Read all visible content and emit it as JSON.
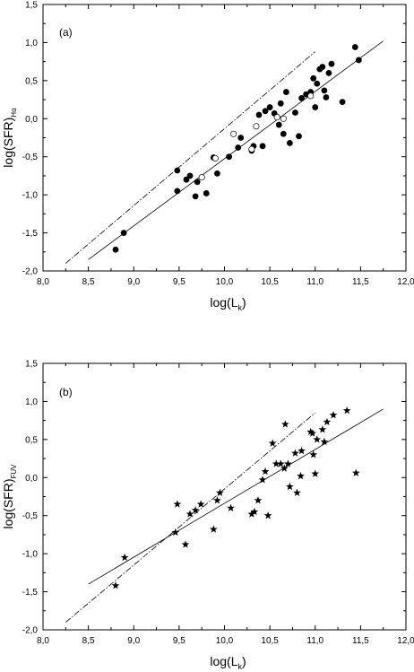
{
  "chart_data": [
    {
      "type": "scatter",
      "panel_label": "(a)",
      "xlabel_main": "log(L",
      "xlabel_sub": "k",
      "xlabel_close": ")",
      "ylabel_main": "log(SFR)",
      "ylabel_sub": "Hα",
      "xlim": [
        8.0,
        12.0
      ],
      "ylim": [
        -2.0,
        1.5
      ],
      "xticks": [
        8.0,
        8.5,
        9.0,
        9.5,
        10.0,
        10.5,
        11.0,
        11.5,
        12.0
      ],
      "yticks": [
        -2.0,
        -1.5,
        -1.0,
        -0.5,
        0.0,
        0.5,
        1.0,
        1.5
      ],
      "xtick_labels": [
        "8,0",
        "8,5",
        "9,0",
        "9,5",
        "10,0",
        "10,5",
        "11,0",
        "11,5",
        "12,0"
      ],
      "ytick_labels": [
        "-2,0",
        "-1,5",
        "-1,0",
        "-0,5",
        "0,0",
        "0,5",
        "1,0",
        "1,5"
      ],
      "series": [
        {
          "marker": "filled-circle",
          "x": [
            8.8,
            8.89,
            9.48,
            9.48,
            9.58,
            9.62,
            9.68,
            9.7,
            9.8,
            9.88,
            9.92,
            10.05,
            10.15,
            10.18,
            10.3,
            10.32,
            10.38,
            10.42,
            10.45,
            10.5,
            10.55,
            10.6,
            10.62,
            10.65,
            10.68,
            10.72,
            10.78,
            10.82,
            10.85,
            10.9,
            10.95,
            10.98,
            11.0,
            11.02,
            11.05,
            11.08,
            11.1,
            11.12,
            11.15,
            11.18,
            11.3,
            11.44,
            11.48
          ],
          "y": [
            -1.72,
            -1.5,
            -0.95,
            -0.68,
            -0.8,
            -0.75,
            -1.02,
            -0.83,
            -0.98,
            -0.51,
            -0.72,
            -0.5,
            -0.38,
            -0.25,
            -0.42,
            -0.36,
            0.05,
            -0.36,
            0.1,
            0.15,
            0.07,
            -0.08,
            0.2,
            -0.2,
            0.35,
            -0.32,
            0.08,
            -0.23,
            0.27,
            0.32,
            0.35,
            0.53,
            0.15,
            0.46,
            0.65,
            0.68,
            0.37,
            0.28,
            0.6,
            0.72,
            0.22,
            0.94,
            0.77
          ]
        },
        {
          "marker": "open-circle",
          "x": [
            9.75,
            9.9,
            10.1,
            10.3,
            10.35,
            10.58,
            10.65,
            10.95
          ],
          "y": [
            -0.77,
            -0.52,
            -0.2,
            -0.4,
            -0.1,
            0.02,
            0.0,
            0.3
          ]
        }
      ],
      "lines": [
        {
          "style": "solid",
          "x": [
            8.5,
            11.75
          ],
          "y": [
            -1.85,
            1.02
          ]
        },
        {
          "style": "dash-dot",
          "x": [
            8.25,
            11.0
          ],
          "y": [
            -1.9,
            0.88
          ]
        }
      ]
    },
    {
      "type": "scatter",
      "panel_label": "(b)",
      "xlabel_main": "log(L",
      "xlabel_sub": "k",
      "xlabel_close": ")",
      "ylabel_main": "log(SFR)",
      "ylabel_sub": "FUV",
      "xlim": [
        8.0,
        12.0
      ],
      "ylim": [
        -2.0,
        1.5
      ],
      "xticks": [
        8.0,
        8.5,
        9.0,
        9.5,
        10.0,
        10.5,
        11.0,
        11.5,
        12.0
      ],
      "yticks": [
        -2.0,
        -1.5,
        -1.0,
        -0.5,
        0.0,
        0.5,
        1.0,
        1.5
      ],
      "xtick_labels": [
        "8,0",
        "8,5",
        "9,0",
        "9,5",
        "10,0",
        "10,5",
        "11,0",
        "11,5",
        "12,0"
      ],
      "ytick_labels": [
        "-2,0",
        "-1,5",
        "-1,0",
        "-0,5",
        "0,0",
        "0,5",
        "1,0",
        "1,5"
      ],
      "series": [
        {
          "marker": "star",
          "x": [
            8.8,
            8.9,
            9.46,
            9.48,
            9.57,
            9.62,
            9.68,
            9.74,
            9.88,
            9.92,
            9.95,
            10.07,
            10.3,
            10.33,
            10.37,
            10.42,
            10.45,
            10.48,
            10.53,
            10.57,
            10.62,
            10.66,
            10.67,
            10.7,
            10.72,
            10.78,
            10.8,
            10.84,
            10.85,
            10.95,
            10.97,
            10.98,
            11.0,
            11.02,
            11.08,
            11.1,
            11.13,
            11.2,
            11.35,
            11.45
          ],
          "y": [
            -1.42,
            -1.05,
            -0.72,
            -0.35,
            -0.88,
            -0.48,
            -0.43,
            -0.35,
            -0.68,
            -0.3,
            -0.2,
            -0.4,
            -0.48,
            -0.45,
            -0.3,
            -0.03,
            0.08,
            -0.5,
            0.45,
            0.18,
            0.18,
            0.12,
            0.7,
            0.18,
            -0.12,
            0.32,
            -0.2,
            0.02,
            0.35,
            0.6,
            0.58,
            0.3,
            0.05,
            0.5,
            0.63,
            0.47,
            0.73,
            0.82,
            0.88,
            0.06
          ]
        }
      ],
      "lines": [
        {
          "style": "solid",
          "x": [
            8.5,
            11.75
          ],
          "y": [
            -1.4,
            0.9
          ]
        },
        {
          "style": "dash-dot",
          "x": [
            8.25,
            11.0
          ],
          "y": [
            -1.9,
            0.85
          ]
        }
      ]
    }
  ]
}
